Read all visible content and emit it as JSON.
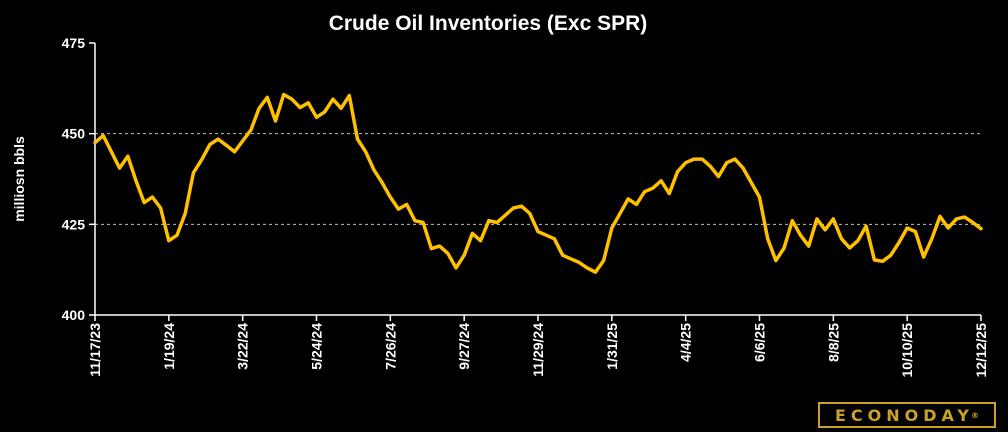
{
  "chart_data": {
    "type": "line",
    "title": "Crude Oil Inventories (Exc SPR)",
    "ylabel": "milliosn bbls",
    "xlabel": "",
    "ylim": [
      400,
      475
    ],
    "yticks": [
      400,
      425,
      450,
      475
    ],
    "grid": "dashed horizontal at 425 and 450",
    "line_color": "#ffc000",
    "x_tick_labels": [
      "11/17/23",
      "1/19/24",
      "3/22/24",
      "5/24/24",
      "7/26/24",
      "9/27/24",
      "11/29/24",
      "1/31/25",
      "4/4/25",
      "6/6/25",
      "8/8/25",
      "10/10/25",
      "12/12/25"
    ],
    "series": [
      {
        "values": [
          447.5,
          449.5,
          445,
          440.5,
          443.8,
          437,
          431,
          432.5,
          429.5,
          420.5,
          422,
          428,
          439.2,
          442.8,
          447,
          448.5,
          446.8,
          445,
          448,
          451,
          457,
          460,
          453.5,
          460.8,
          459.5,
          457.2,
          458.5,
          454.5,
          456,
          459.5,
          457,
          460.5,
          448.5,
          445,
          440,
          436.5,
          432.5,
          429.2,
          430.5,
          426,
          425.5,
          418.3,
          419,
          417,
          413,
          416.5,
          422.5,
          420.5,
          426,
          425.5,
          427.5,
          429.5,
          430,
          428,
          423,
          422,
          421,
          416.5,
          415.5,
          414.5,
          413,
          411.8,
          415,
          424,
          428,
          432,
          430.5,
          434,
          435,
          437,
          433.5,
          439.5,
          442,
          443,
          443,
          441,
          438.2,
          442,
          443,
          440.5,
          436.5,
          432.5,
          421,
          415,
          418.5,
          426,
          422,
          419,
          426.5,
          423.5,
          426.5,
          421,
          418.5,
          420.5,
          424.5,
          415.2,
          414.8,
          416.5,
          420,
          424,
          423,
          416,
          421,
          427.2,
          424,
          426.5,
          427,
          425.5,
          423.8
        ]
      }
    ]
  },
  "branding": {
    "logo_text": "ECONODAY",
    "logo_mark": "®"
  }
}
